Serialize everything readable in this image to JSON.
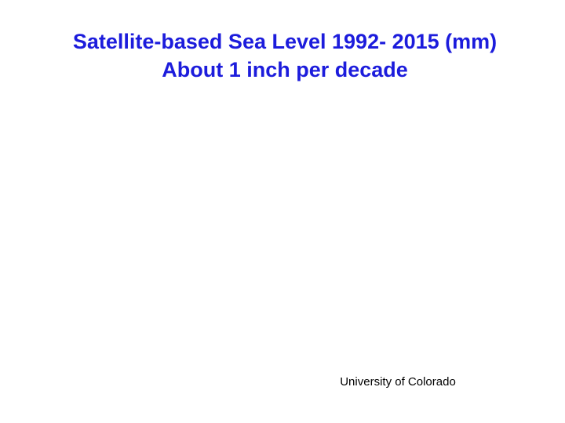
{
  "slide": {
    "title_lines": [
      "Satellite-based Sea Level 1992- 2015 (mm)",
      "About 1 inch per decade"
    ],
    "credit": "University of Colorado"
  }
}
